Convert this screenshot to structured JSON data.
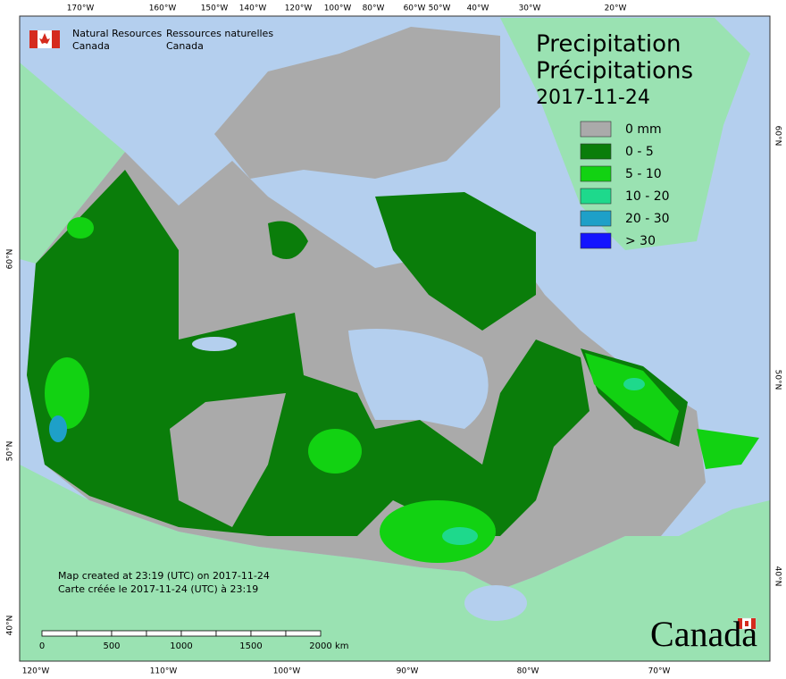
{
  "header": {
    "org_en": [
      "Natural Resources",
      "Canada"
    ],
    "org_fr": [
      "Ressources naturelles",
      "Canada"
    ]
  },
  "title": [
    "Precipitation",
    "Précipitations",
    "2017-11-24"
  ],
  "legend": [
    {
      "label": "0 mm",
      "color": "#aaaaaa"
    },
    {
      "label": "0 - 5",
      "color": "#0a7d0a"
    },
    {
      "label": "5 - 10",
      "color": "#12d212"
    },
    {
      "label": "10 - 20",
      "color": "#1ed98c"
    },
    {
      "label": "20 - 30",
      "color": "#1ea0c8"
    },
    {
      "label": "> 30",
      "color": "#1414ff"
    }
  ],
  "graticule": {
    "top": [
      "170°W",
      "160°W",
      "150°W",
      "140°W",
      "120°W",
      "100°W",
      "80°W",
      "60°W",
      "50°W",
      "40°W",
      "30°W",
      "20°W"
    ],
    "bottom": [
      "120°W",
      "110°W",
      "100°W",
      "90°W",
      "80°W",
      "70°W"
    ],
    "left": [
      "60°N",
      "50°N",
      "40°N"
    ],
    "right": [
      "60°N",
      "50°N",
      "40°N"
    ]
  },
  "notes": [
    "Map created at 23:19 (UTC) on 2017-11-24",
    "Carte créée le 2017-11-24 (UTC) à 23:19"
  ],
  "scale": {
    "ticks": [
      "0",
      "500",
      "1000",
      "1500",
      "2000"
    ],
    "unit": "km"
  },
  "wordmark": "Canada"
}
